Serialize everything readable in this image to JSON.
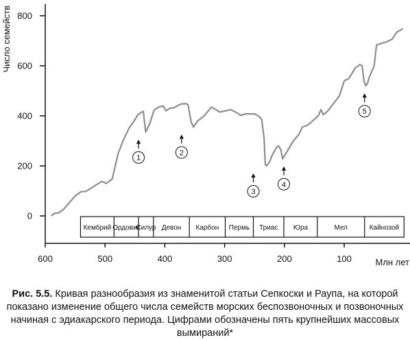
{
  "chart_data": {
    "type": "line",
    "ylabel": "Число семейств",
    "xlabel": "Млн лет",
    "xlim": [
      600,
      -10
    ],
    "ylim": [
      0,
      850
    ],
    "x_ticks": [
      600,
      500,
      400,
      300,
      200,
      100
    ],
    "y_ticks": [
      0,
      200,
      400,
      600,
      800
    ],
    "series": [
      {
        "x": [
          590,
          585,
          578,
          570,
          560,
          550,
          540,
          532,
          525,
          515,
          505,
          498,
          488,
          478,
          470,
          460,
          450,
          445,
          440,
          436,
          432,
          425,
          418,
          410,
          403,
          398,
          392,
          385,
          375,
          372,
          368,
          365,
          361,
          356,
          352,
          345,
          335,
          322,
          308,
          290,
          278,
          273,
          265,
          250,
          242,
          238,
          234,
          232,
          230,
          225,
          220,
          213,
          210,
          206,
          203,
          195,
          185,
          176,
          170,
          162,
          155,
          148,
          143,
          139,
          135,
          128,
          121,
          108,
          100,
          92,
          82,
          74,
          70,
          67,
          64,
          61,
          58,
          50,
          46,
          38,
          30,
          20,
          12,
          6,
          2
        ],
        "y": [
          0,
          10,
          12,
          25,
          52,
          80,
          97,
          98,
          108,
          124,
          138,
          130,
          148,
          250,
          300,
          350,
          385,
          405,
          413,
          418,
          335,
          370,
          423,
          435,
          440,
          420,
          430,
          432,
          445,
          448,
          448,
          449,
          444,
          375,
          355,
          380,
          398,
          435,
          415,
          425,
          410,
          402,
          408,
          408,
          397,
          385,
          310,
          205,
          200,
          215,
          245,
          275,
          280,
          265,
          228,
          260,
          300,
          325,
          355,
          362,
          375,
          390,
          402,
          425,
          405,
          418,
          440,
          480,
          540,
          550,
          590,
          605,
          600,
          540,
          520,
          530,
          555,
          600,
          683,
          690,
          695,
          706,
          735,
          742,
          750
        ]
      }
    ],
    "periods": [
      {
        "label": "Кембрий",
        "from": 541,
        "to": 485
      },
      {
        "label": "Ордовик",
        "from": 485,
        "to": 444
      },
      {
        "label": "Силур",
        "from": 444,
        "to": 419
      },
      {
        "label": "Девон",
        "from": 419,
        "to": 359
      },
      {
        "label": "Карбон",
        "from": 359,
        "to": 299
      },
      {
        "label": "Пермь",
        "from": 299,
        "to": 252
      },
      {
        "label": "Триас",
        "from": 252,
        "to": 201
      },
      {
        "label": "Юра",
        "from": 201,
        "to": 145
      },
      {
        "label": "Мел",
        "from": 145,
        "to": 66
      },
      {
        "label": "Кайнозой",
        "from": 66,
        "to": 0
      }
    ],
    "extinctions": [
      {
        "label": "1",
        "x": 444,
        "y": 335
      },
      {
        "label": "2",
        "x": 372,
        "y": 355
      },
      {
        "label": "3",
        "x": 252,
        "y": 200
      },
      {
        "label": "4",
        "x": 201,
        "y": 228
      },
      {
        "label": "5",
        "x": 66,
        "y": 520
      }
    ]
  },
  "caption": {
    "prefix": "Рис. 5.5.",
    "text": " Кривая разнообразия из знаменитой статьи Сепкоски и Раупа, на которой показано изменение общего числа семейств морских беспозвоночных и позвоночных начиная с эдиакарского периода. Цифрами обозначены пять крупнейших массовых вымираний*"
  }
}
